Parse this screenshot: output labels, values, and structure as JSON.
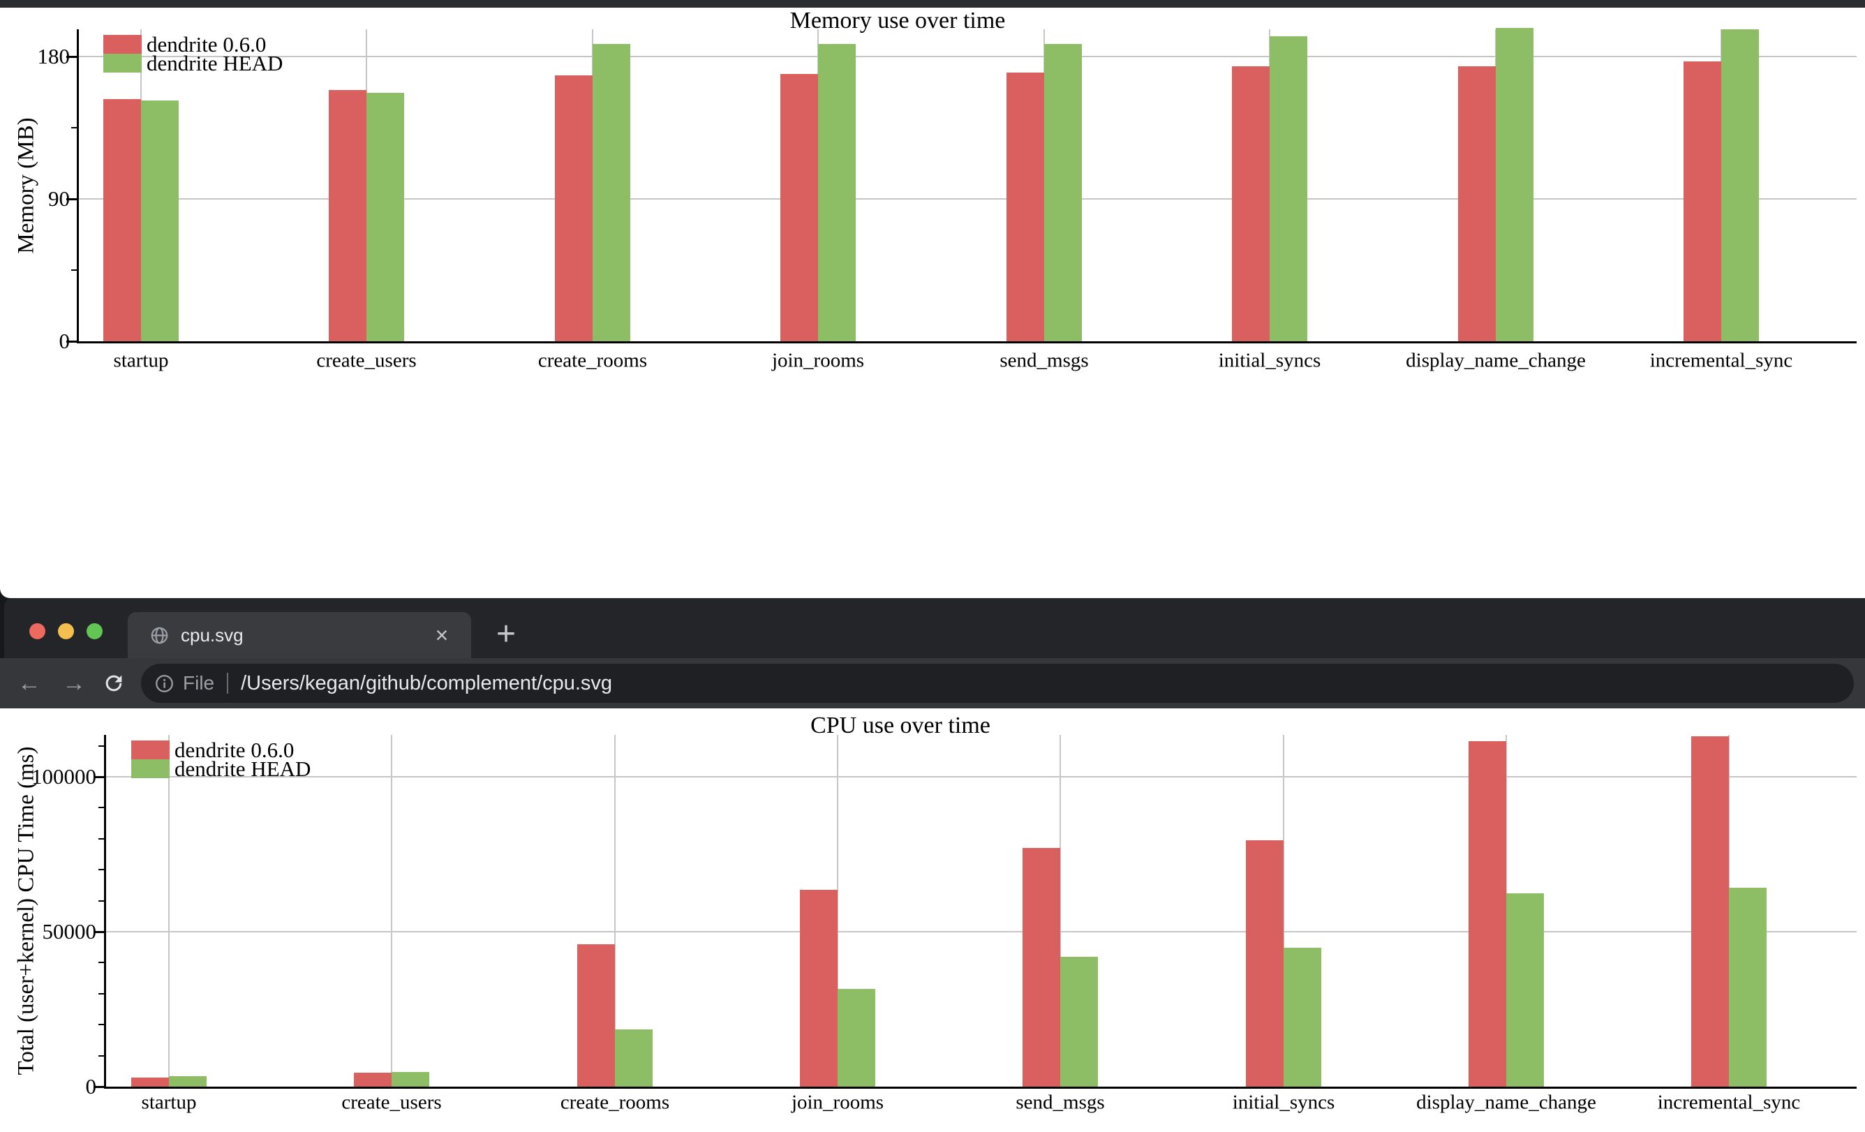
{
  "browser": {
    "tab": {
      "title": "cpu.svg",
      "favicon": "globe-icon",
      "close_glyph": "×"
    },
    "new_tab_glyph": "+",
    "traffic_lights": {
      "close": "#ee6a5f",
      "minimize": "#f5bf4f",
      "zoom": "#62c554"
    },
    "toolbar": {
      "back_glyph": "←",
      "forward_glyph": "→",
      "file_chip": "File",
      "url": "/Users/kegan/github/complement/cpu.svg"
    }
  },
  "chart_data": [
    {
      "id": "memory",
      "type": "bar",
      "title": "Memory use over time",
      "ylabel": "Memory (MB)",
      "xlabel": "",
      "categories": [
        "startup",
        "create_users",
        "create_rooms",
        "join_rooms",
        "send_msgs",
        "initial_syncs",
        "display_name_change",
        "incremental_sync"
      ],
      "series": [
        {
          "name": "dendrite 0.6.0",
          "color": "#d9605e",
          "values": [
            153,
            159,
            168,
            169,
            170,
            174,
            174,
            177
          ]
        },
        {
          "name": "dendrite HEAD",
          "color": "#8dbd64",
          "values": [
            152,
            157,
            188,
            188,
            188,
            193,
            198,
            197
          ]
        }
      ],
      "ylim": [
        0,
        197
      ],
      "yticks": [
        0,
        90,
        180
      ],
      "minor_yticks": [
        45,
        135
      ],
      "grid": true,
      "legend_position": "top-left"
    },
    {
      "id": "cpu",
      "type": "bar",
      "title": "CPU use over time",
      "ylabel": "Total (user+kernel) CPU Time (ms)",
      "xlabel": "",
      "categories": [
        "startup",
        "create_users",
        "create_rooms",
        "join_rooms",
        "send_msgs",
        "initial_syncs",
        "display_name_change",
        "incremental_sync"
      ],
      "series": [
        {
          "name": "dendrite 0.6.0",
          "color": "#d9605e",
          "values": [
            3000,
            4600,
            46000,
            63500,
            77000,
            79500,
            111500,
            113000
          ]
        },
        {
          "name": "dendrite HEAD",
          "color": "#8dbd64",
          "values": [
            3400,
            4800,
            18500,
            31500,
            42000,
            44800,
            62500,
            64200
          ]
        }
      ],
      "ylim": [
        0,
        113500
      ],
      "yticks": [
        0,
        50000,
        100000
      ],
      "minor_yticks": [
        10000,
        20000,
        30000,
        40000,
        60000,
        70000,
        80000,
        90000,
        110000
      ],
      "grid": true,
      "legend_position": "top-left"
    }
  ]
}
